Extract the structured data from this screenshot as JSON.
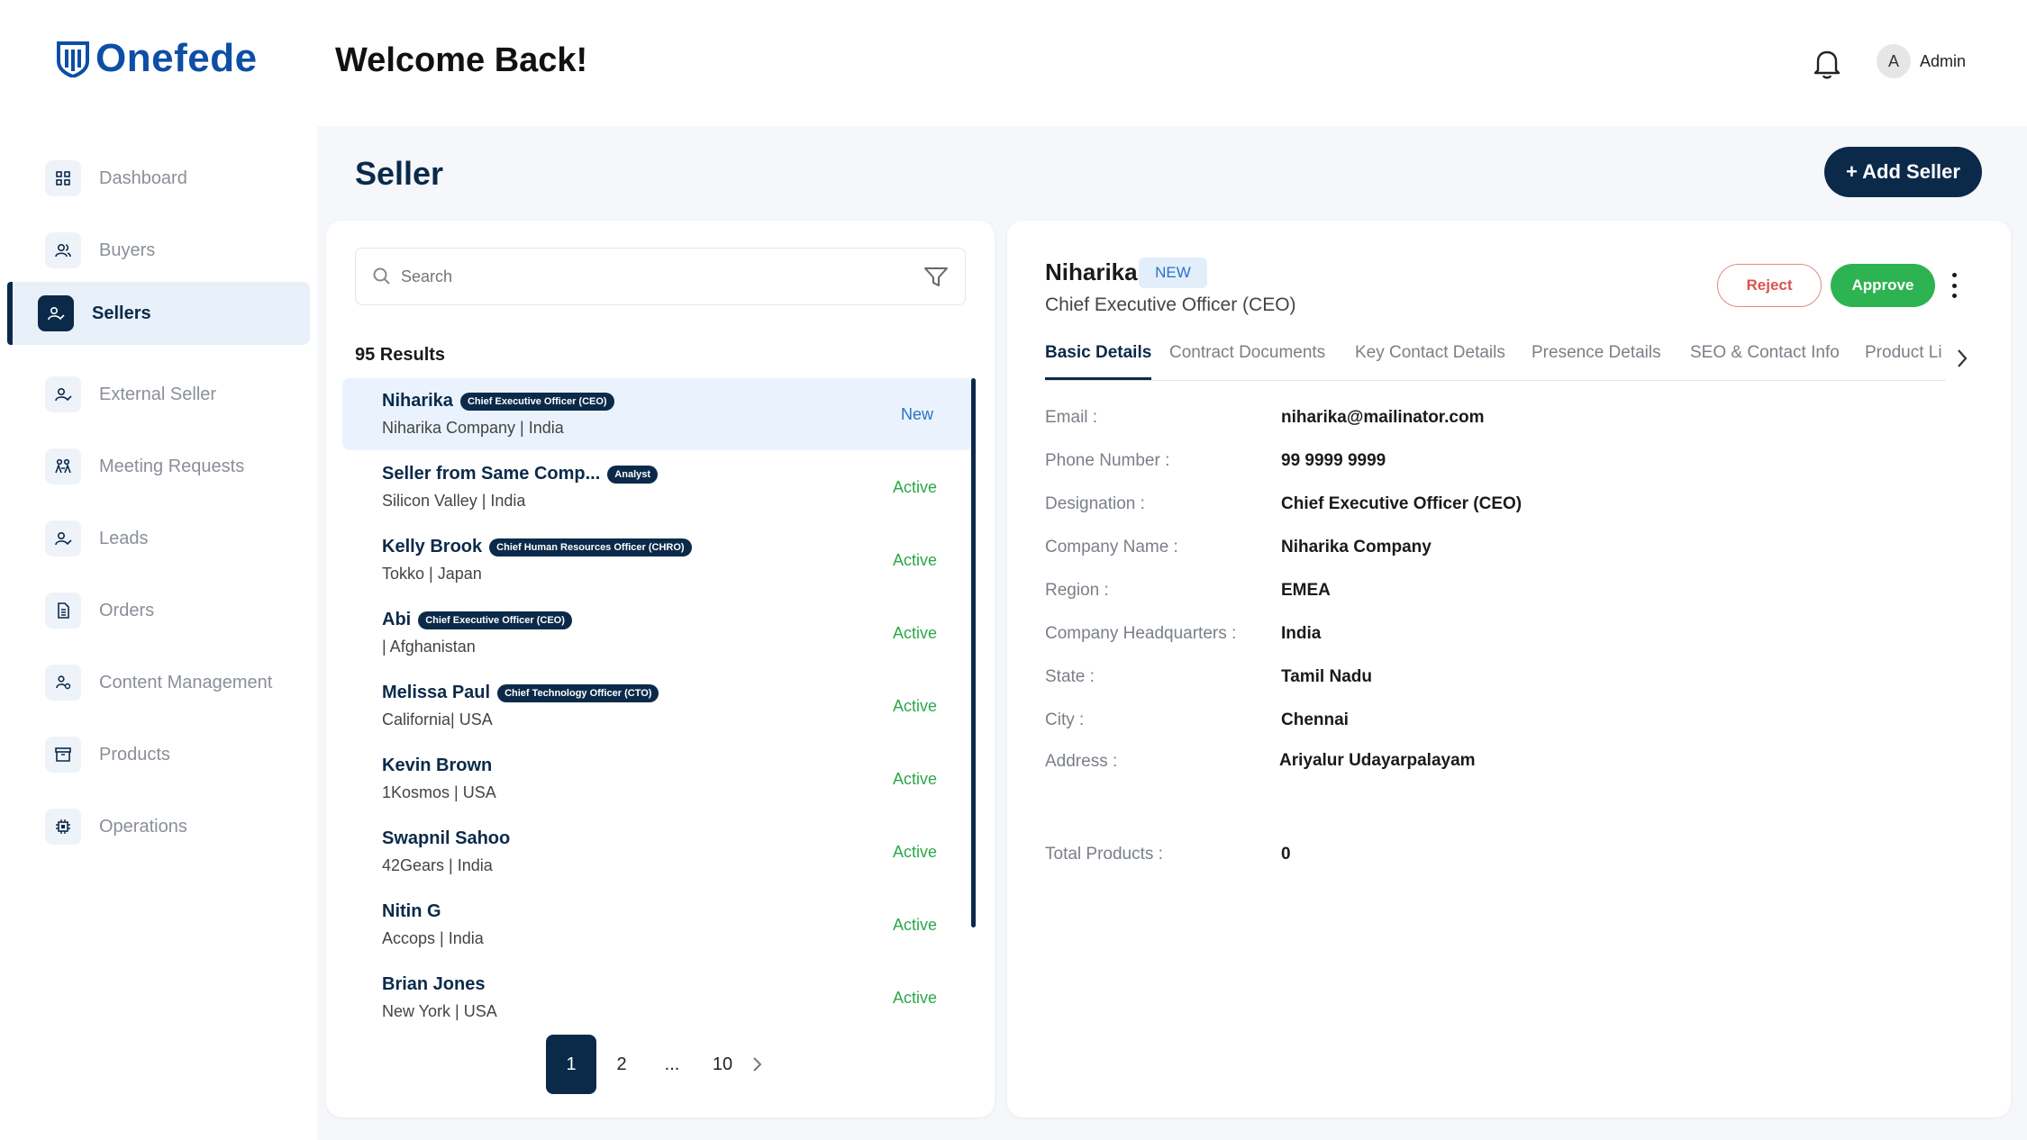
{
  "app": {
    "logo_text": "Onefede",
    "welcome": "Welcome Back!"
  },
  "user": {
    "avatar_initial": "A",
    "name": "Admin"
  },
  "sidebar": {
    "items": [
      {
        "label": "Dashboard",
        "icon": "grid-icon"
      },
      {
        "label": "Buyers",
        "icon": "users-icon"
      },
      {
        "label": "Sellers",
        "icon": "user-check-icon",
        "active": true
      },
      {
        "label": "External Seller",
        "icon": "user-check-icon"
      },
      {
        "label": "Meeting Requests",
        "icon": "meeting-icon"
      },
      {
        "label": "Leads",
        "icon": "user-check-icon"
      },
      {
        "label": "Orders",
        "icon": "document-icon"
      },
      {
        "label": "Content Management",
        "icon": "content-icon"
      },
      {
        "label": "Products",
        "icon": "box-icon"
      },
      {
        "label": "Operations",
        "icon": "chip-icon"
      }
    ]
  },
  "page": {
    "title": "Seller",
    "add_button": "+ Add Seller"
  },
  "list": {
    "search_placeholder": "Search",
    "results": "95 Results",
    "sellers": [
      {
        "name": "Niharika",
        "badge": "Chief Executive Officer (CEO)",
        "sub": "Niharika Company | India",
        "status": "New",
        "selected": true
      },
      {
        "name": "Seller from Same Comp...",
        "badge": "Analyst",
        "sub": "Silicon Valley | India",
        "status": "Active"
      },
      {
        "name": "Kelly Brook",
        "badge": "Chief Human Resources Officer (CHRO)",
        "sub": "Tokko |  Japan",
        "status": "Active"
      },
      {
        "name": "Abi",
        "badge": "Chief Executive Officer (CEO)",
        "sub": "| Afghanistan",
        "status": "Active"
      },
      {
        "name": "Melissa Paul",
        "badge": "Chief Technology Officer (CTO)",
        "sub": "California| USA",
        "status": "Active"
      },
      {
        "name": "Kevin Brown",
        "badge": "",
        "sub": "1Kosmos | USA",
        "status": "Active"
      },
      {
        "name": "Swapnil Sahoo",
        "badge": "",
        "sub": "42Gears | India",
        "status": "Active"
      },
      {
        "name": "Nitin G",
        "badge": "",
        "sub": "Accops | India",
        "status": "Active"
      },
      {
        "name": "Brian Jones",
        "badge": "",
        "sub": "New York | USA",
        "status": "Active"
      }
    ],
    "pagination": {
      "pages": [
        "1",
        "2",
        "...",
        "10"
      ],
      "current": "1"
    }
  },
  "detail": {
    "name": "Niharika",
    "tag": "NEW",
    "title": "Chief Executive Officer (CEO)",
    "reject": "Reject",
    "approve": "Approve",
    "tabs": [
      "Basic Details",
      "Contract Documents",
      "Key Contact Details",
      "Presence Details",
      "SEO & Contact Info",
      "Product Li"
    ],
    "fields": [
      {
        "label": "Email :",
        "value": "niharika@mailinator.com"
      },
      {
        "label": "Phone Number :",
        "value": "99 9999 9999"
      },
      {
        "label": "Designation :",
        "value": "Chief Executive Officer (CEO)"
      },
      {
        "label": "Company Name :",
        "value": "Niharika Company"
      },
      {
        "label": "Region :",
        "value": "EMEA"
      },
      {
        "label": "Company Headquarters :",
        "value": "India"
      },
      {
        "label": "State :",
        "value": "Tamil Nadu"
      },
      {
        "label": "City :",
        "value": "Chennai"
      },
      {
        "label": "Address :",
        "value": "Ariyalur Udayarpalayam"
      }
    ],
    "total_products": {
      "label": "Total Products :",
      "value": "0"
    }
  },
  "colors": {
    "primary": "#0b2a4a",
    "brand": "#0d4ea6",
    "success": "#2eb352",
    "danger": "#d9534f",
    "link": "#2a72c8"
  }
}
